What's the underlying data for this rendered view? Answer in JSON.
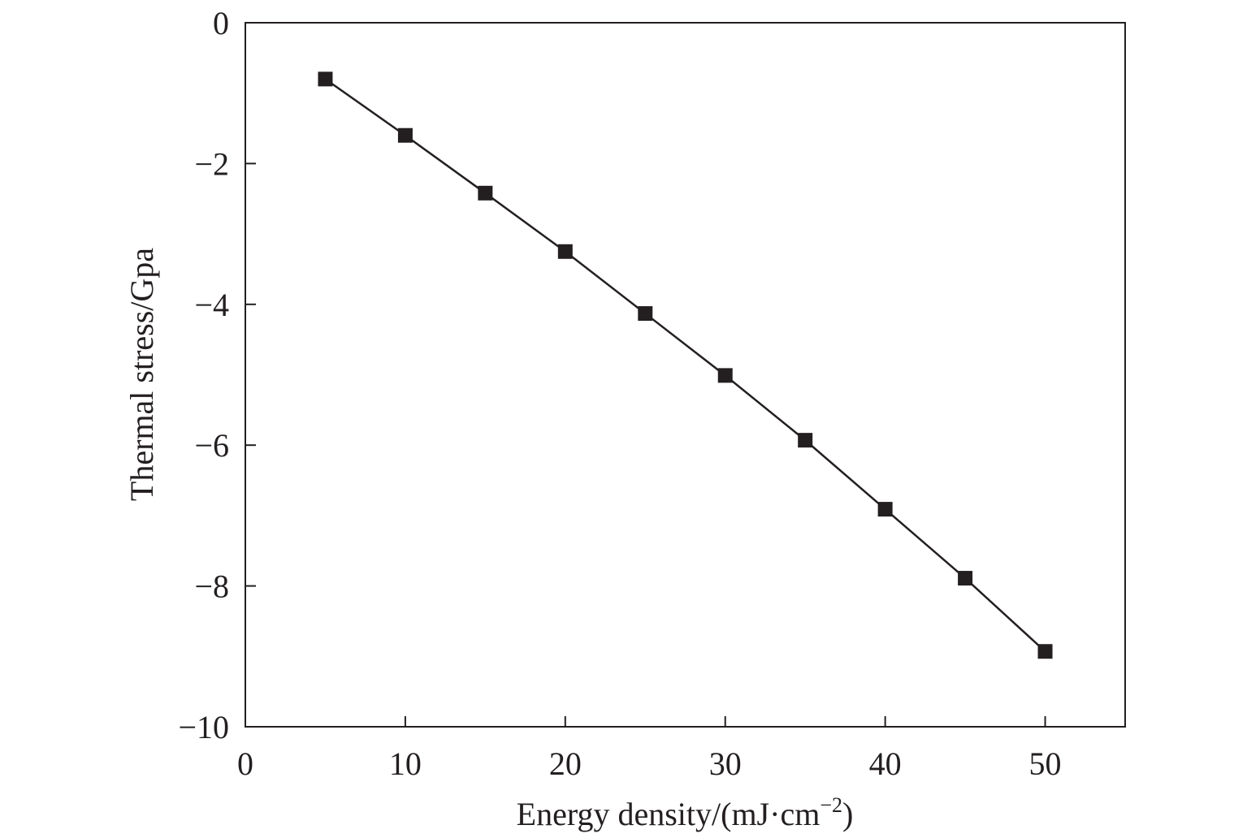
{
  "chart_data": {
    "type": "line",
    "title": "",
    "xlabel": "Energy density/(mJ·cm",
    "xlabel_sup": "−2",
    "xlabel_end": ")",
    "ylabel": "Thermal stress/Gpa",
    "xlim": [
      0,
      55
    ],
    "ylim": [
      -10,
      0
    ],
    "xticks": [
      0,
      10,
      20,
      30,
      40,
      50
    ],
    "yticks": [
      0,
      -2,
      -4,
      -6,
      -8,
      -10
    ],
    "xtick_labels": [
      "0",
      "10",
      "20",
      "30",
      "40",
      "50"
    ],
    "ytick_labels": [
      "0",
      "−2",
      "−4",
      "−6",
      "−8",
      "−10"
    ],
    "grid": false,
    "series": [
      {
        "name": "thermal stress",
        "marker": "square",
        "color": "#231f20",
        "x": [
          5,
          10,
          15,
          20,
          25,
          30,
          35,
          40,
          45,
          50
        ],
        "y": [
          -0.8,
          -1.6,
          -2.42,
          -3.25,
          -4.13,
          -5.01,
          -5.93,
          -6.91,
          -7.89,
          -8.93
        ]
      }
    ]
  }
}
